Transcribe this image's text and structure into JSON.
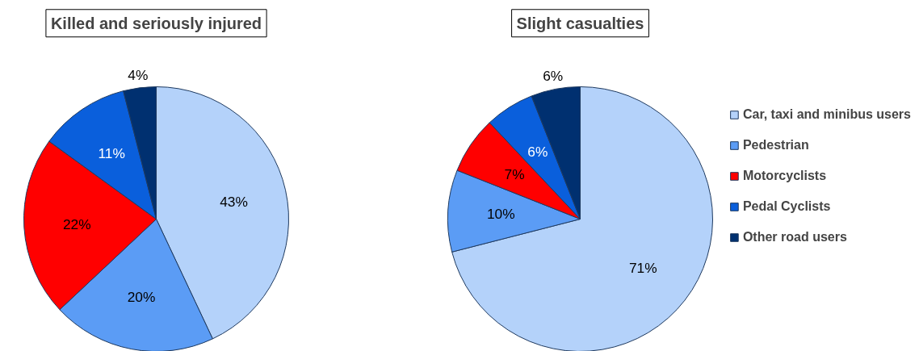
{
  "chart_data": [
    {
      "type": "pie",
      "title": "Killed and seriously injured",
      "categories": [
        null,
        null,
        null,
        null,
        null
      ],
      "values": [
        43,
        20,
        22,
        11,
        4
      ],
      "value_labels": [
        "43%",
        "20%",
        "22%",
        "11%",
        "4%"
      ],
      "colors": [
        "#b4d2fa",
        "#5b9cf5",
        "#ff0000",
        "#0a5fdc",
        "#003070"
      ],
      "legend": false
    },
    {
      "type": "pie",
      "title": "Slight casualties",
      "categories": [
        "Car, taxi and minibus users",
        "Pedestrian",
        "Motorcyclists",
        "Pedal Cyclists",
        "Other road users"
      ],
      "values": [
        71,
        10,
        7,
        6,
        6
      ],
      "value_labels": [
        "71%",
        "10%",
        "7%",
        "6%",
        "6%"
      ],
      "colors": [
        "#b4d2fa",
        "#5b9cf5",
        "#ff0000",
        "#0a5fdc",
        "#003070"
      ],
      "legend": "right"
    }
  ]
}
